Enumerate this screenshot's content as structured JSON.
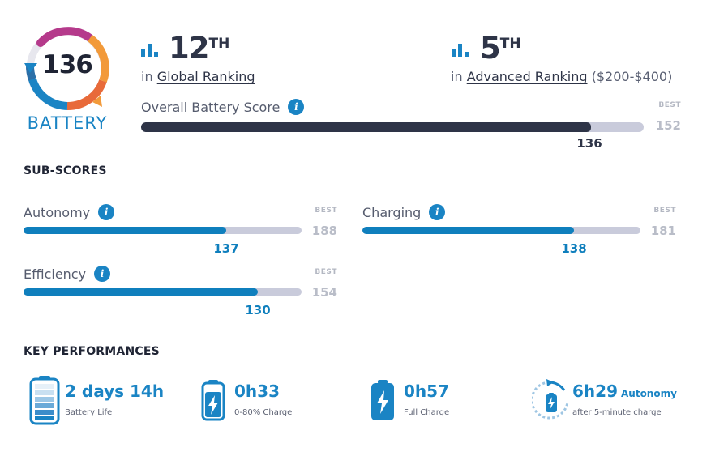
{
  "badge": {
    "score": "136",
    "label": "BATTERY",
    "colors": {
      "magenta": "#b53a8b",
      "orange": "#f29a3a",
      "blue": "#1a84c4",
      "red": "#e24c3c"
    }
  },
  "global_ranking": {
    "icon": "bar-chart-icon",
    "rank": "12",
    "suffix": "TH",
    "prefix": "in",
    "link": "Global Ranking"
  },
  "advanced_ranking": {
    "icon": "bar-chart-icon",
    "rank": "5",
    "suffix": "TH",
    "prefix": "in",
    "link": "Advanced Ranking",
    "range": "($200-$400)"
  },
  "overall": {
    "label": "Overall Battery Score",
    "best_caption": "BEST",
    "best": "152",
    "value": "136",
    "fraction": 0.895,
    "color": "#2e3447"
  },
  "subscores": {
    "title": "SUB-SCORES",
    "items": [
      {
        "label": "Autonomy",
        "best_caption": "BEST",
        "best": "188",
        "value": "137",
        "fraction": 0.729
      },
      {
        "label": "Charging",
        "best_caption": "BEST",
        "best": "181",
        "value": "138",
        "fraction": 0.762
      },
      {
        "label": "Efficiency",
        "best_caption": "BEST",
        "best": "154",
        "value": "130",
        "fraction": 0.844
      }
    ],
    "color": "#0f7fbd"
  },
  "key_performances": {
    "title": "KEY PERFORMANCES",
    "items": [
      {
        "icon": "battery-full-icon",
        "value": "2 days 14h",
        "caption": "Battery Life"
      },
      {
        "icon": "battery-charging-icon",
        "value": "0h33",
        "caption": "0-80% Charge"
      },
      {
        "icon": "battery-bolt-icon",
        "value": "0h57",
        "caption": "Full Charge"
      },
      {
        "icon": "quick-charge-icon",
        "value": "6h29",
        "suffix": "Autonomy",
        "caption": "after 5-minute charge"
      }
    ]
  }
}
